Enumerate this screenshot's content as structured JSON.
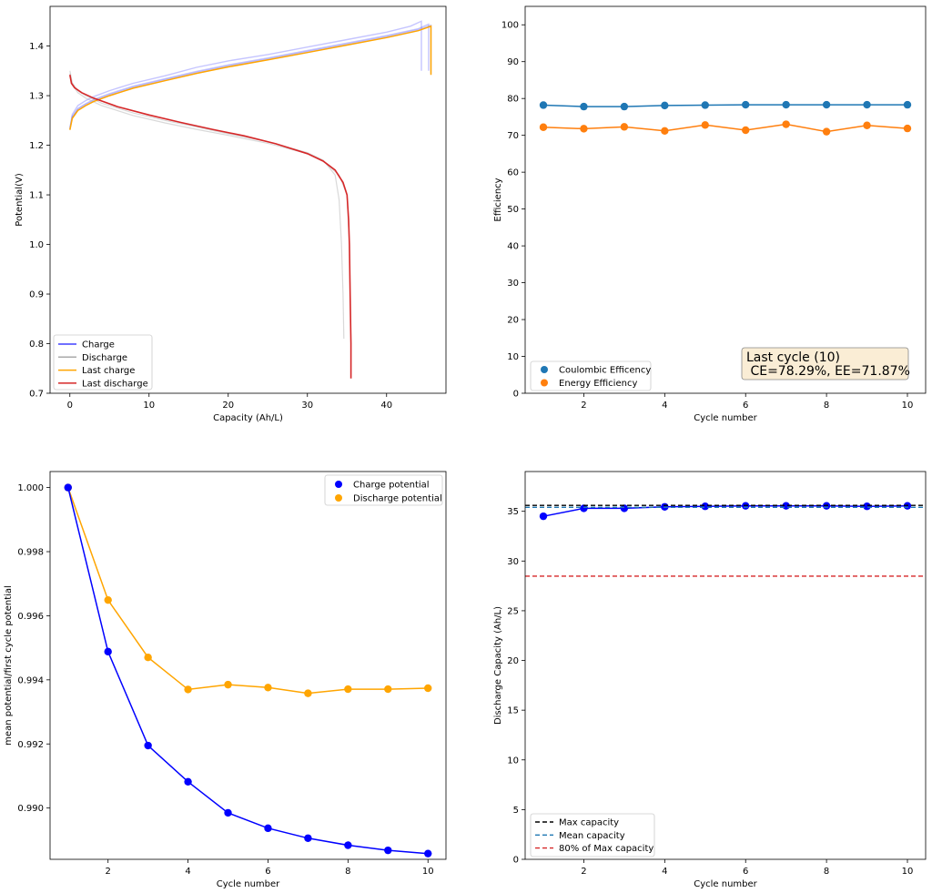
{
  "chart_data": [
    {
      "id": "p1",
      "type": "line",
      "xlabel": "Capacity (Ah/L)",
      "ylabel": "Potential(V)",
      "xlim": [
        -2.5,
        47.5
      ],
      "ylim": [
        0.7,
        1.48
      ],
      "xticks": [
        "0",
        "10",
        "20",
        "30",
        "40"
      ],
      "yticks": [
        "0.7",
        "0.8",
        "0.9",
        "1.0",
        "1.1",
        "1.2",
        "1.3",
        "1.4"
      ],
      "legend": [
        "Charge",
        "Discharge",
        "Last charge",
        "Last discharge"
      ],
      "legend_position": "lower-left",
      "colors": {
        "charge": "#4040ff",
        "discharge": "#aaaaaa",
        "last_charge": "#ffa500",
        "last_discharge": "#d62728"
      },
      "series": [
        {
          "name": "Charge",
          "role": "charge",
          "x": [
            0,
            0.3,
            1,
            2,
            3,
            5,
            8,
            12,
            16,
            20,
            25,
            30,
            35,
            40,
            43,
            44.4,
            44.4,
            44.4
          ],
          "y": [
            1.235,
            1.262,
            1.28,
            1.29,
            1.298,
            1.31,
            1.325,
            1.34,
            1.357,
            1.37,
            1.383,
            1.398,
            1.413,
            1.428,
            1.44,
            1.45,
            1.4,
            1.35
          ]
        },
        {
          "name": "Charge",
          "role": "charge",
          "x": [
            0,
            0.3,
            1,
            2,
            3,
            5,
            8,
            12,
            16,
            20,
            25,
            30,
            35,
            40,
            44,
            45.3,
            45.3
          ],
          "y": [
            1.233,
            1.258,
            1.274,
            1.284,
            1.292,
            1.304,
            1.319,
            1.334,
            1.349,
            1.362,
            1.376,
            1.391,
            1.406,
            1.421,
            1.435,
            1.444,
            1.35
          ]
        },
        {
          "name": "Charge",
          "role": "charge",
          "x": [
            0,
            0.3,
            1,
            2,
            3,
            5,
            8,
            12,
            16,
            20,
            25,
            30,
            35,
            40,
            44,
            45.6,
            45.6
          ],
          "y": [
            1.232,
            1.256,
            1.272,
            1.282,
            1.29,
            1.302,
            1.317,
            1.332,
            1.347,
            1.36,
            1.374,
            1.389,
            1.404,
            1.419,
            1.433,
            1.442,
            1.345
          ]
        },
        {
          "name": "Discharge",
          "role": "discharge",
          "x": [
            0,
            0.3,
            1,
            2,
            4,
            8,
            12,
            16,
            20,
            25,
            30,
            32,
            33.5,
            34,
            34.3,
            34.5,
            34.6
          ],
          "y": [
            1.35,
            1.326,
            1.31,
            1.3,
            1.285,
            1.265,
            1.25,
            1.237,
            1.223,
            1.207,
            1.185,
            1.17,
            1.14,
            1.09,
            1.0,
            0.9,
            0.81
          ]
        },
        {
          "name": "Discharge",
          "role": "discharge",
          "x": [
            0,
            0.3,
            1,
            2,
            4,
            8,
            12,
            16,
            20,
            25,
            30,
            32,
            34,
            35,
            35.3,
            35.4,
            35.5
          ],
          "y": [
            1.345,
            1.322,
            1.306,
            1.295,
            1.28,
            1.26,
            1.245,
            1.232,
            1.22,
            1.204,
            1.183,
            1.168,
            1.14,
            1.1,
            1.0,
            0.9,
            0.8
          ]
        },
        {
          "name": "Last charge",
          "role": "last_charge",
          "x": [
            0,
            0.3,
            1,
            2,
            3,
            5,
            8,
            12,
            16,
            20,
            25,
            30,
            35,
            40,
            44,
            45.6,
            45.6
          ],
          "y": [
            1.231,
            1.254,
            1.27,
            1.28,
            1.288,
            1.3,
            1.315,
            1.33,
            1.345,
            1.358,
            1.372,
            1.387,
            1.402,
            1.417,
            1.431,
            1.44,
            1.342
          ]
        },
        {
          "name": "Last discharge",
          "role": "last_discharge",
          "x": [
            0,
            0.2,
            0.6,
            1.5,
            3,
            6,
            10,
            14,
            18,
            22,
            26,
            30,
            32,
            33.5,
            34.5,
            35.0,
            35.2,
            35.3,
            35.4,
            35.5,
            35.5
          ],
          "y": [
            1.342,
            1.325,
            1.316,
            1.306,
            1.295,
            1.278,
            1.261,
            1.246,
            1.232,
            1.219,
            1.203,
            1.183,
            1.168,
            1.15,
            1.125,
            1.1,
            1.05,
            1.0,
            0.9,
            0.8,
            0.73
          ]
        }
      ]
    },
    {
      "id": "p2",
      "type": "line",
      "xlabel": "Cycle number",
      "ylabel": "Efficiency",
      "xlim": [
        0.55,
        10.45
      ],
      "ylim": [
        0,
        105
      ],
      "xticks": [
        "2",
        "4",
        "6",
        "8",
        "10"
      ],
      "yticks": [
        "0",
        "10",
        "20",
        "30",
        "40",
        "50",
        "60",
        "70",
        "80",
        "90",
        "100"
      ],
      "legend": [
        "Coulombic Efficency",
        "Energy Efficiency"
      ],
      "legend_position": "lower-left",
      "annotation": [
        "Last cycle (10)",
        " CE=78.29%, EE=71.87%"
      ],
      "annotation_position": "lower-right",
      "colors": {
        "ce": "#1f77b4",
        "ee": "#ff7f0e"
      },
      "x": [
        1,
        2,
        3,
        4,
        5,
        6,
        7,
        8,
        9,
        10
      ],
      "series": [
        {
          "name": "Coulombic Efficency",
          "values": [
            78.2,
            77.8,
            77.8,
            78.1,
            78.2,
            78.3,
            78.3,
            78.3,
            78.3,
            78.29
          ]
        },
        {
          "name": "Energy Efficiency",
          "values": [
            72.2,
            71.8,
            72.3,
            71.2,
            72.8,
            71.4,
            73.0,
            71.0,
            72.7,
            71.87
          ]
        }
      ]
    },
    {
      "id": "p3",
      "type": "line",
      "xlabel": "Cycle number",
      "ylabel": "mean potential/first cycle potential",
      "xlim": [
        0.55,
        10.45
      ],
      "ylim": [
        0.9884,
        1.0005
      ],
      "xticks": [
        "2",
        "4",
        "6",
        "8",
        "10"
      ],
      "yticks": [
        "0.990",
        "0.992",
        "0.994",
        "0.996",
        "0.998",
        "1.000"
      ],
      "legend": [
        "Charge potential",
        "Discharge potential"
      ],
      "legend_position": "upper-right",
      "colors": {
        "charge": "#0000ff",
        "discharge": "#ffa500"
      },
      "x": [
        1,
        2,
        3,
        4,
        5,
        6,
        7,
        8,
        9,
        10
      ],
      "series": [
        {
          "name": "Charge potential",
          "values": [
            1.0,
            0.99488,
            0.99195,
            0.99082,
            0.98985,
            0.98937,
            0.98906,
            0.98884,
            0.98868,
            0.98858
          ]
        },
        {
          "name": "Discharge potential",
          "values": [
            1.0,
            0.99649,
            0.9947,
            0.9937,
            0.99385,
            0.99376,
            0.99358,
            0.99371,
            0.99371,
            0.99374
          ]
        }
      ]
    },
    {
      "id": "p4",
      "type": "line",
      "xlabel": "Cycle number",
      "ylabel": "Discharge Capacity (Ah/L)",
      "xlim": [
        0.55,
        10.45
      ],
      "ylim": [
        0,
        39
      ],
      "xticks": [
        "2",
        "4",
        "6",
        "8",
        "10"
      ],
      "yticks": [
        "0",
        "5",
        "10",
        "15",
        "20",
        "25",
        "30",
        "35"
      ],
      "legend": [
        "Max capacity",
        "Mean capacity",
        "80% of Max capacity"
      ],
      "legend_position": "lower-left",
      "colors": {
        "points": "#0000ff",
        "max": "#000000",
        "mean": "#1f77b4",
        "pct80": "#d62728"
      },
      "x": [
        1,
        2,
        3,
        4,
        5,
        6,
        7,
        8,
        9,
        10
      ],
      "values": [
        34.5,
        35.3,
        35.3,
        35.45,
        35.5,
        35.55,
        35.55,
        35.55,
        35.5,
        35.55
      ],
      "hlines": {
        "max": 35.6,
        "mean": 35.4,
        "pct80": 28.48
      }
    }
  ]
}
